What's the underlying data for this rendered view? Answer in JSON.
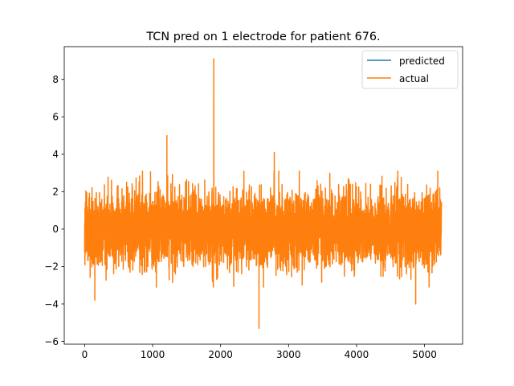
{
  "chart_data": {
    "type": "line",
    "title": "TCN pred on 1 electrode for patient 676.",
    "xlabel": "",
    "ylabel": "",
    "xlim": [
      -300,
      5560
    ],
    "ylim": [
      -6.15,
      9.75
    ],
    "x_ticks": [
      0,
      1000,
      2000,
      3000,
      4000,
      5000
    ],
    "y_ticks": [
      -6,
      -4,
      -2,
      0,
      2,
      4,
      6,
      8
    ],
    "x_tick_labels": [
      "0",
      "1000",
      "2000",
      "3000",
      "4000",
      "5000"
    ],
    "y_tick_labels": [
      "−6",
      "−4",
      "−2",
      "0",
      "2",
      "4",
      "6",
      "8"
    ],
    "grid": false,
    "legend_position": "top-right",
    "n_points": 5250,
    "envelope": {
      "typical_range": [
        -2.5,
        2.5
      ],
      "notable_extremes": [
        {
          "x": 1210,
          "y": 5.0
        },
        {
          "x": 1900,
          "y": 9.1
        },
        {
          "x": 2790,
          "y": 4.1
        },
        {
          "x": 2565,
          "y": -5.3
        },
        {
          "x": 4870,
          "y": -4.0
        },
        {
          "x": 150,
          "y": -3.8
        }
      ]
    },
    "series": [
      {
        "name": "predicted",
        "color": "#1f77b4",
        "visible_in_plot": false
      },
      {
        "name": "actual",
        "color": "#ff7f0e",
        "visible_in_plot": true
      }
    ]
  }
}
